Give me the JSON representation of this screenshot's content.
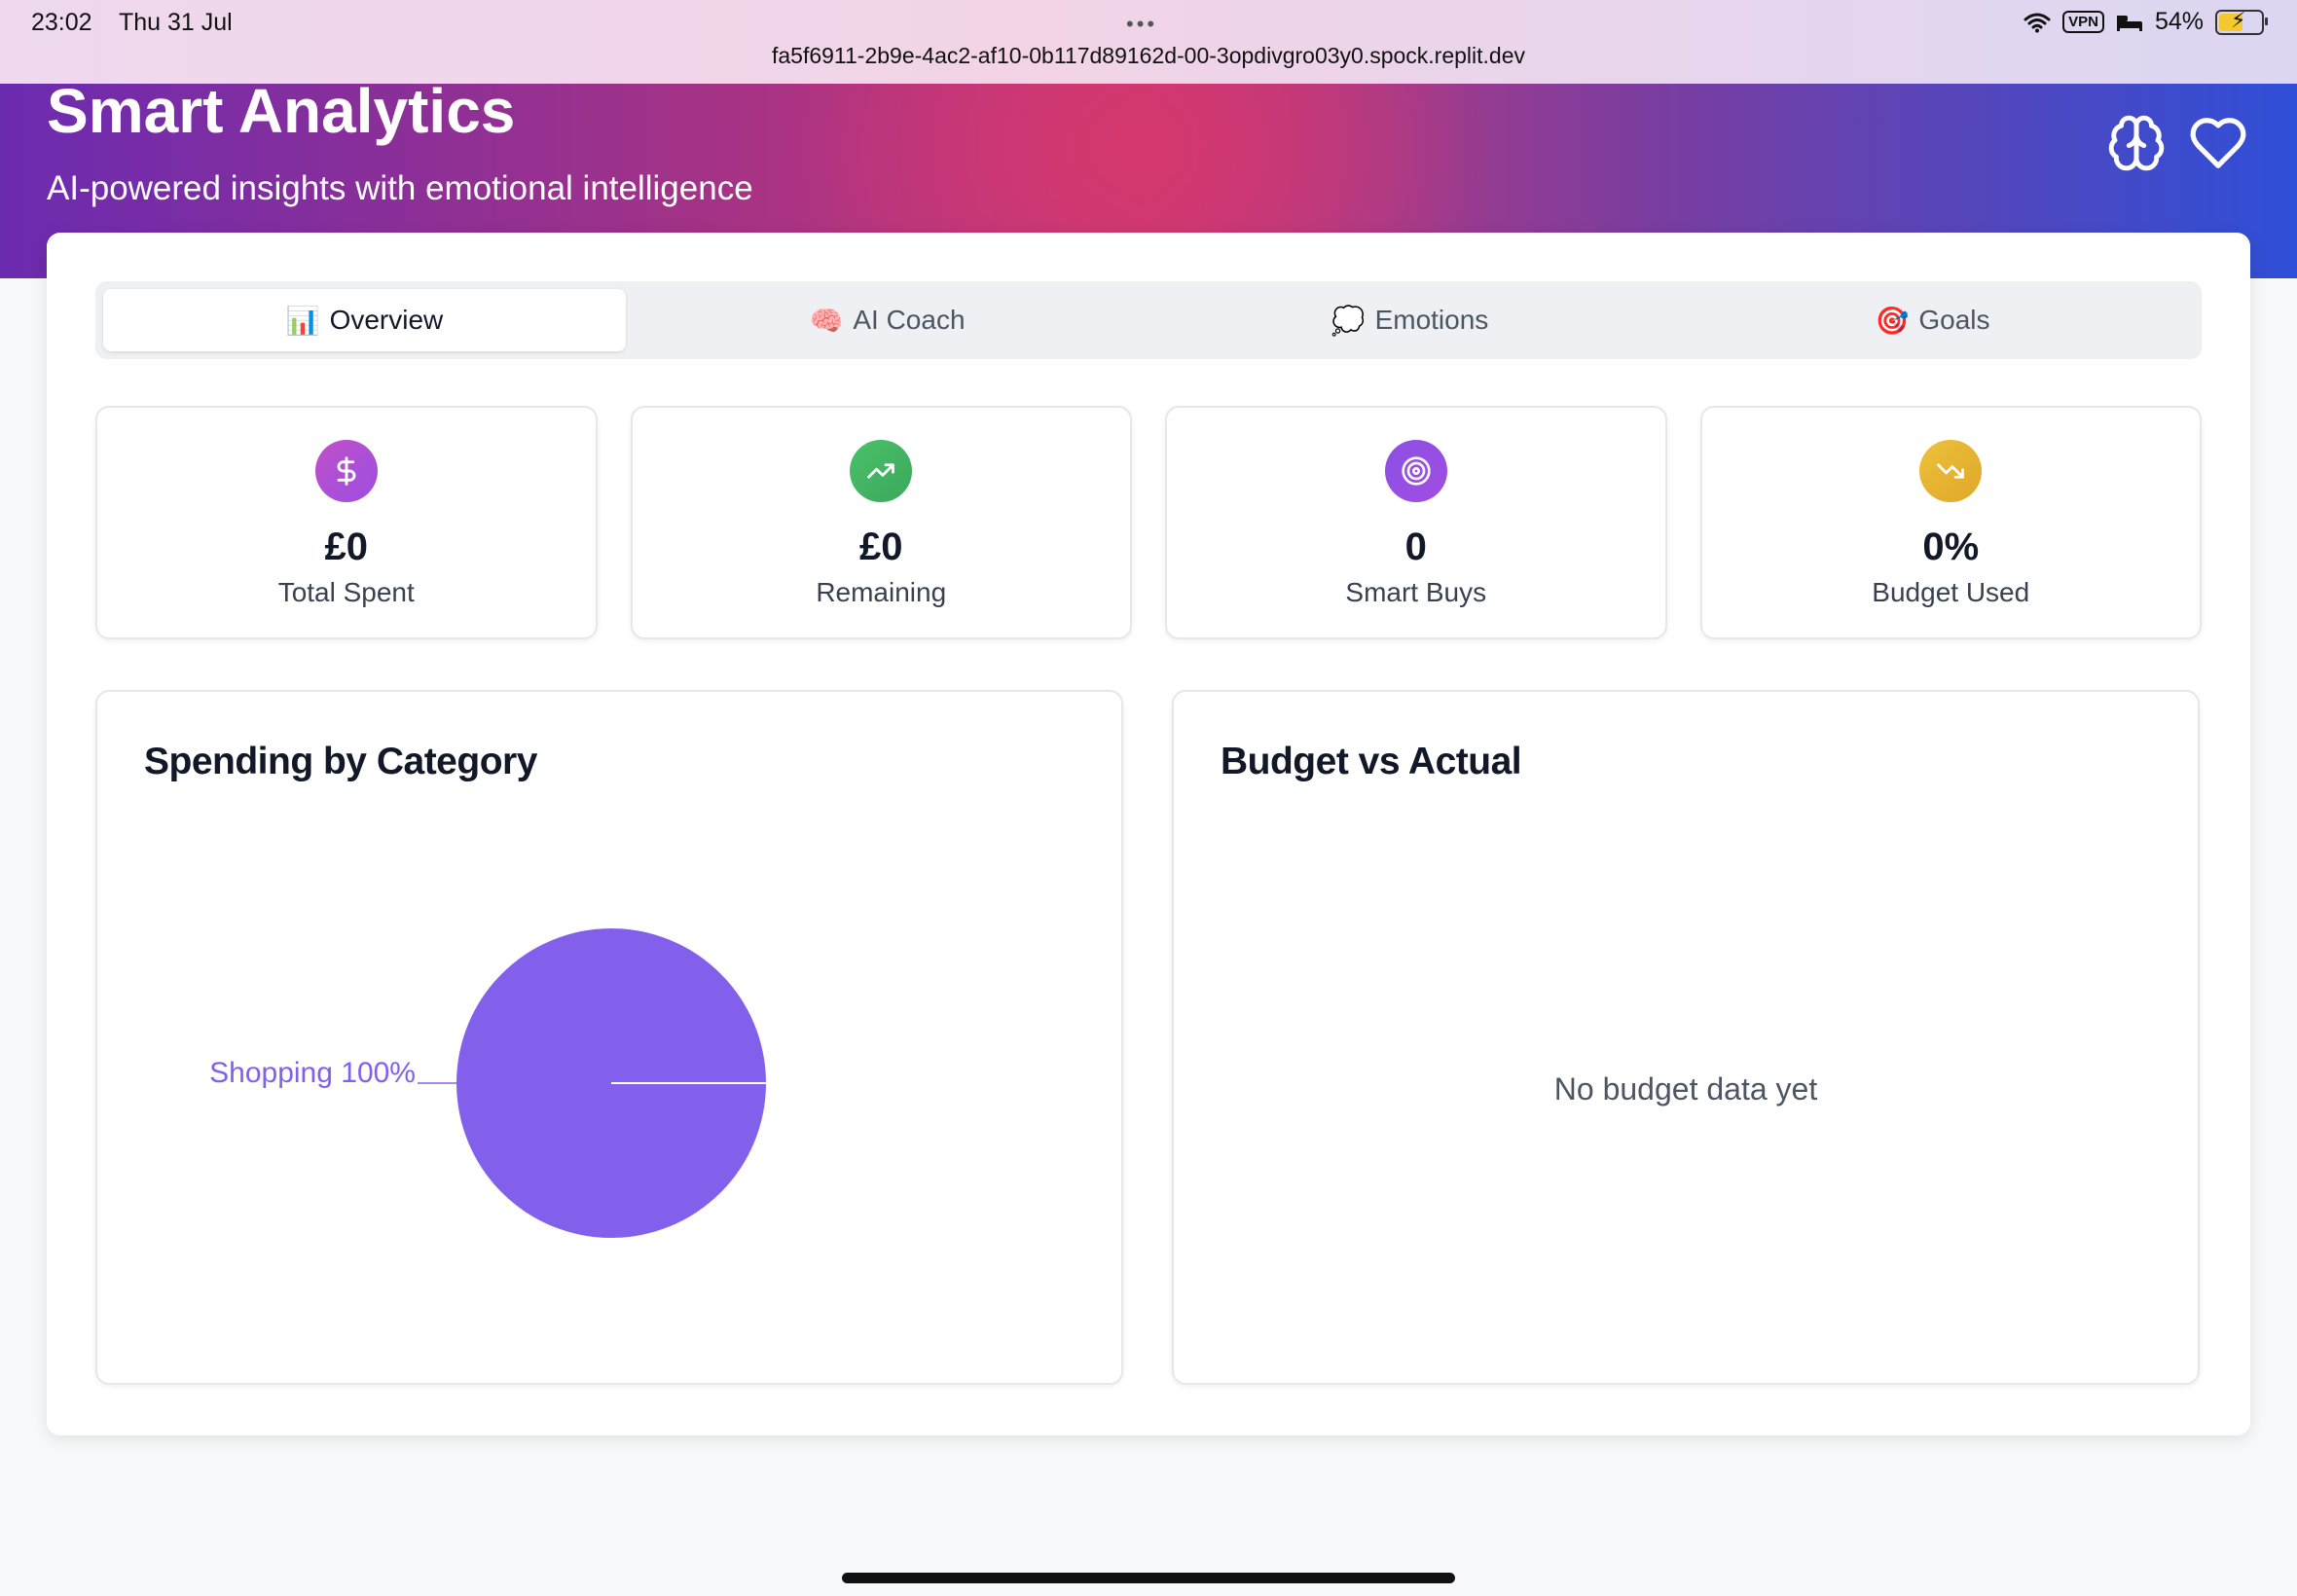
{
  "status_bar": {
    "time": "23:02",
    "date": "Thu 31 Jul",
    "url": "fa5f6911-2b9e-4ac2-af10-0b117d89162d-00-3opdivgro03y0.spock.replit.dev",
    "vpn": "VPN",
    "battery": "54%"
  },
  "header": {
    "title": "Smart Analytics",
    "subtitle": "AI-powered insights with emotional intelligence",
    "icons": [
      "brain-icon",
      "heart-icon"
    ]
  },
  "tabs": [
    {
      "emoji": "📊",
      "label": "Overview",
      "active": true
    },
    {
      "emoji": "🧠",
      "label": "AI Coach",
      "active": false
    },
    {
      "emoji": "💭",
      "label": "Emotions",
      "active": false
    },
    {
      "emoji": "🎯",
      "label": "Goals",
      "active": false
    }
  ],
  "stats": [
    {
      "icon": "dollar-icon",
      "value": "£0",
      "label": "Total Spent",
      "color": "#b84fd6"
    },
    {
      "icon": "trending-up-icon",
      "value": "£0",
      "label": "Remaining",
      "color": "#4cc06a"
    },
    {
      "icon": "target-icon",
      "value": "0",
      "label": "Smart Buys",
      "color": "#9a4ee6"
    },
    {
      "icon": "trending-down-icon",
      "value": "0%",
      "label": "Budget Used",
      "color": "#e9b730"
    }
  ],
  "spending_panel": {
    "title": "Spending by Category"
  },
  "budget_panel": {
    "title": "Budget vs Actual",
    "empty_message": "No budget data yet"
  },
  "chart_data": {
    "type": "pie",
    "categories": [
      "Shopping"
    ],
    "values": [
      100
    ],
    "labels": [
      "Shopping 100%"
    ],
    "colors": [
      "#8360ec"
    ]
  }
}
